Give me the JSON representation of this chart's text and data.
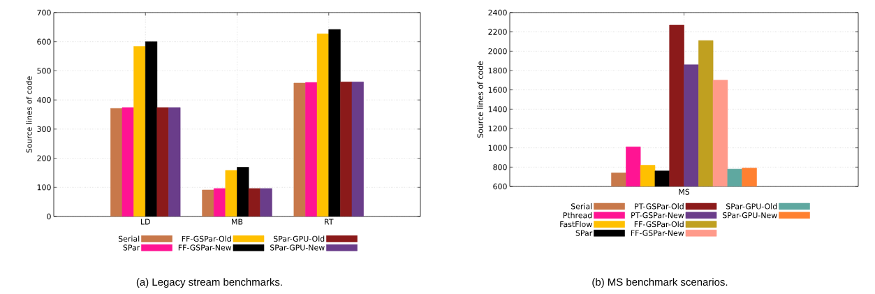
{
  "chart_data": [
    {
      "type": "bar",
      "categories": [
        "LD",
        "MB",
        "RT"
      ],
      "ylabel": "Source lines of code",
      "ylim": [
        0,
        700
      ],
      "yticks": [
        0,
        100,
        200,
        300,
        400,
        500,
        600,
        700
      ],
      "grid": true,
      "legend": "bottom",
      "annotations": [
        "(a) Legacy stream benchmarks."
      ],
      "series": [
        {
          "name": "Serial",
          "color": "#c8784a",
          "values": [
            371,
            91,
            458
          ]
        },
        {
          "name": "SPar",
          "color": "#ff1493",
          "values": [
            374,
            96,
            460
          ]
        },
        {
          "name": "FF-GSPar-Old",
          "color": "#ffc000",
          "values": [
            584,
            158,
            627
          ]
        },
        {
          "name": "FF-GSPar-New",
          "color": "#000000",
          "values": [
            600,
            169,
            642
          ]
        },
        {
          "name": "SPar-GPU-Old",
          "color": "#8b1a1a",
          "values": [
            374,
            96,
            462
          ]
        },
        {
          "name": "SPar-GPU-New",
          "color": "#6a3d8a",
          "values": [
            374,
            96,
            462
          ]
        }
      ]
    },
    {
      "type": "bar",
      "categories": [
        "MS"
      ],
      "ylabel": "Source lines of code",
      "ylim": [
        600,
        2400
      ],
      "yticks": [
        600,
        800,
        1000,
        1200,
        1400,
        1600,
        1800,
        2000,
        2200,
        2400
      ],
      "grid": true,
      "legend": "bottom",
      "annotations": [
        "(b) MS benchmark scenarios."
      ],
      "series": [
        {
          "name": "Serial",
          "color": "#c8784a",
          "values": [
            740
          ]
        },
        {
          "name": "Pthread",
          "color": "#ff1493",
          "values": [
            1010
          ]
        },
        {
          "name": "FastFlow",
          "color": "#ffc000",
          "values": [
            820
          ]
        },
        {
          "name": "SPar",
          "color": "#000000",
          "values": [
            761
          ]
        },
        {
          "name": "PT-GSPar-Old",
          "color": "#8b1a1a",
          "values": [
            2270
          ]
        },
        {
          "name": "PT-GSPar-New",
          "color": "#6a3d8a",
          "values": [
            1860
          ]
        },
        {
          "name": "FF-GSPar-Old",
          "color": "#c0a020",
          "values": [
            2110
          ]
        },
        {
          "name": "FF-GSPar-New",
          "color": "#ff9a8a",
          "values": [
            1700
          ]
        },
        {
          "name": "SPar-GPU-Old",
          "color": "#5fa8a0",
          "values": [
            780
          ]
        },
        {
          "name": "SPar-GPU-New",
          "color": "#ff8030",
          "values": [
            790
          ]
        }
      ]
    }
  ]
}
